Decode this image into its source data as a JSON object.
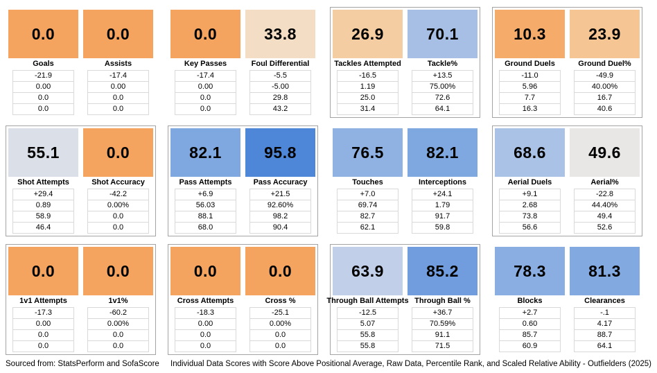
{
  "footer": {
    "source": "Sourced from: StatsPerform and SofaScore",
    "caption": "Individual Data Scores with Score Above Positional Average, Raw Data, Percentile Rank, and Scaled Relative Ability - Outfielders (2025)"
  },
  "rows": [
    {
      "groups": [
        {
          "bordered": false,
          "cards": [
            {
              "label": "Goals",
              "score": "0.0",
              "color": "#F5A45F",
              "values": [
                "-21.9",
                "0.00",
                "0.0",
                "0.0"
              ]
            },
            {
              "label": "Assists",
              "score": "0.0",
              "color": "#F5A45F",
              "values": [
                "-17.4",
                "0.00",
                "0.0",
                "0.0"
              ]
            }
          ]
        },
        {
          "bordered": false,
          "cards": [
            {
              "label": "Key Passes",
              "score": "0.0",
              "color": "#F5A45F",
              "values": [
                "-17.4",
                "0.00",
                "0.0",
                "0.0"
              ]
            },
            {
              "label": "Foul Differential",
              "score": "33.8",
              "color": "#F3DDC5",
              "values": [
                "-5.5",
                "-5.00",
                "29.8",
                "43.2"
              ]
            }
          ]
        },
        {
          "bordered": true,
          "cards": [
            {
              "label": "Tackles Attempted",
              "score": "26.9",
              "color": "#F4CDA2",
              "values": [
                "-16.5",
                "1.19",
                "25.0",
                "31.4"
              ]
            },
            {
              "label": "Tackle%",
              "score": "70.1",
              "color": "#A7BFE5",
              "values": [
                "+13.5",
                "75.00%",
                "72.6",
                "64.1"
              ]
            }
          ]
        },
        {
          "bordered": true,
          "cards": [
            {
              "label": "Ground Duels",
              "score": "10.3",
              "color": "#F5AC6B",
              "values": [
                "-11.0",
                "5.96",
                "7.7",
                "16.3"
              ]
            },
            {
              "label": "Ground Duel%",
              "score": "23.9",
              "color": "#F5C694",
              "values": [
                "-49.9",
                "40.00%",
                "16.7",
                "40.6"
              ]
            }
          ]
        }
      ]
    },
    {
      "groups": [
        {
          "bordered": true,
          "cards": [
            {
              "label": "Shot Attempts",
              "score": "55.1",
              "color": "#DADFE8",
              "values": [
                "+29.4",
                "0.89",
                "58.9",
                "46.4"
              ]
            },
            {
              "label": "Shot Accuracy",
              "score": "0.0",
              "color": "#F5A45F",
              "values": [
                "-42.2",
                "0.00%",
                "0.0",
                "0.0"
              ]
            }
          ]
        },
        {
          "bordered": true,
          "cards": [
            {
              "label": "Pass Attempts",
              "score": "82.1",
              "color": "#80A8E0",
              "values": [
                "+6.9",
                "56.03",
                "88.1",
                "68.0"
              ]
            },
            {
              "label": "Pass Accuracy",
              "score": "95.8",
              "color": "#4E86D8",
              "values": [
                "+21.5",
                "92.60%",
                "98.2",
                "90.4"
              ]
            }
          ]
        },
        {
          "bordered": false,
          "cards": [
            {
              "label": "Touches",
              "score": "76.5",
              "color": "#90B2E3",
              "values": [
                "+7.0",
                "69.74",
                "82.7",
                "62.1"
              ]
            },
            {
              "label": "Interceptions",
              "score": "82.1",
              "color": "#80A8E0",
              "values": [
                "+24.1",
                "1.79",
                "91.7",
                "59.8"
              ]
            }
          ]
        },
        {
          "bordered": true,
          "cards": [
            {
              "label": "Aerial Duels",
              "score": "68.6",
              "color": "#ABC2E7",
              "values": [
                "+9.1",
                "2.68",
                "73.8",
                "56.6"
              ]
            },
            {
              "label": "Aerial%",
              "score": "49.6",
              "color": "#E8E7E5",
              "values": [
                "-22.8",
                "44.40%",
                "49.4",
                "52.6"
              ]
            }
          ]
        }
      ]
    },
    {
      "groups": [
        {
          "bordered": true,
          "cards": [
            {
              "label": "1v1 Attempts",
              "score": "0.0",
              "color": "#F5A45F",
              "values": [
                "-17.3",
                "0.00",
                "0.0",
                "0.0"
              ]
            },
            {
              "label": "1v1%",
              "score": "0.0",
              "color": "#F5A45F",
              "values": [
                "-60.2",
                "0.00%",
                "0.0",
                "0.0"
              ]
            }
          ]
        },
        {
          "bordered": true,
          "cards": [
            {
              "label": "Cross Attempts",
              "score": "0.0",
              "color": "#F5A45F",
              "values": [
                "-18.3",
                "0.00",
                "0.0",
                "0.0"
              ]
            },
            {
              "label": "Cross %",
              "score": "0.0",
              "color": "#F5A45F",
              "values": [
                "-25.1",
                "0.00%",
                "0.0",
                "0.0"
              ]
            }
          ]
        },
        {
          "bordered": true,
          "cards": [
            {
              "label": "Through Ball Attempts",
              "score": "63.9",
              "color": "#C1CFE9",
              "values": [
                "-12.5",
                "5.07",
                "55.8",
                "55.8"
              ]
            },
            {
              "label": "Through Ball %",
              "score": "85.2",
              "color": "#719DDE",
              "values": [
                "+36.7",
                "70.59%",
                "91.1",
                "71.5"
              ]
            }
          ]
        },
        {
          "bordered": false,
          "cards": [
            {
              "label": "Blocks",
              "score": "78.3",
              "color": "#8AAEE2",
              "values": [
                "+2.7",
                "0.60",
                "85.7",
                "60.9"
              ]
            },
            {
              "label": "Clearances",
              "score": "81.3",
              "color": "#83A9E1",
              "values": [
                "-.1",
                "4.17",
                "88.7",
                "64.1"
              ]
            }
          ]
        }
      ]
    }
  ],
  "chart_data": {
    "type": "table",
    "title": "Individual Data Scores with Score Above Positional Average, Raw Data, Percentile Rank, and Scaled Relative Ability - Outfielders (2025)",
    "source": "StatsPerform and SofaScore",
    "row_labels": [
      "Individual Data Score",
      "Score Above Positional Average",
      "Raw Data",
      "Percentile Rank",
      "Scaled Relative Ability"
    ],
    "color_scale": {
      "low_color": "#F5A45F",
      "mid_color": "#E8E7E5",
      "high_color": "#4E86D8",
      "low": 0,
      "high": 100
    },
    "metrics": [
      {
        "name": "Goals",
        "score": 0.0,
        "score_above_avg": "-21.9",
        "raw": "0.00",
        "percentile": 0.0,
        "scaled": 0.0
      },
      {
        "name": "Assists",
        "score": 0.0,
        "score_above_avg": "-17.4",
        "raw": "0.00",
        "percentile": 0.0,
        "scaled": 0.0
      },
      {
        "name": "Key Passes",
        "score": 0.0,
        "score_above_avg": "-17.4",
        "raw": "0.00",
        "percentile": 0.0,
        "scaled": 0.0
      },
      {
        "name": "Foul Differential",
        "score": 33.8,
        "score_above_avg": "-5.5",
        "raw": "-5.00",
        "percentile": 29.8,
        "scaled": 43.2
      },
      {
        "name": "Tackles Attempted",
        "score": 26.9,
        "score_above_avg": "-16.5",
        "raw": "1.19",
        "percentile": 25.0,
        "scaled": 31.4
      },
      {
        "name": "Tackle%",
        "score": 70.1,
        "score_above_avg": "+13.5",
        "raw": "75.00%",
        "percentile": 72.6,
        "scaled": 64.1
      },
      {
        "name": "Ground Duels",
        "score": 10.3,
        "score_above_avg": "-11.0",
        "raw": "5.96",
        "percentile": 7.7,
        "scaled": 16.3
      },
      {
        "name": "Ground Duel%",
        "score": 23.9,
        "score_above_avg": "-49.9",
        "raw": "40.00%",
        "percentile": 16.7,
        "scaled": 40.6
      },
      {
        "name": "Shot Attempts",
        "score": 55.1,
        "score_above_avg": "+29.4",
        "raw": "0.89",
        "percentile": 58.9,
        "scaled": 46.4
      },
      {
        "name": "Shot Accuracy",
        "score": 0.0,
        "score_above_avg": "-42.2",
        "raw": "0.00%",
        "percentile": 0.0,
        "scaled": 0.0
      },
      {
        "name": "Pass Attempts",
        "score": 82.1,
        "score_above_avg": "+6.9",
        "raw": "56.03",
        "percentile": 88.1,
        "scaled": 68.0
      },
      {
        "name": "Pass Accuracy",
        "score": 95.8,
        "score_above_avg": "+21.5",
        "raw": "92.60%",
        "percentile": 98.2,
        "scaled": 90.4
      },
      {
        "name": "Touches",
        "score": 76.5,
        "score_above_avg": "+7.0",
        "raw": "69.74",
        "percentile": 82.7,
        "scaled": 62.1
      },
      {
        "name": "Interceptions",
        "score": 82.1,
        "score_above_avg": "+24.1",
        "raw": "1.79",
        "percentile": 91.7,
        "scaled": 59.8
      },
      {
        "name": "Aerial Duels",
        "score": 68.6,
        "score_above_avg": "+9.1",
        "raw": "2.68",
        "percentile": 73.8,
        "scaled": 56.6
      },
      {
        "name": "Aerial%",
        "score": 49.6,
        "score_above_avg": "-22.8",
        "raw": "44.40%",
        "percentile": 49.4,
        "scaled": 52.6
      },
      {
        "name": "1v1 Attempts",
        "score": 0.0,
        "score_above_avg": "-17.3",
        "raw": "0.00",
        "percentile": 0.0,
        "scaled": 0.0
      },
      {
        "name": "1v1%",
        "score": 0.0,
        "score_above_avg": "-60.2",
        "raw": "0.00%",
        "percentile": 0.0,
        "scaled": 0.0
      },
      {
        "name": "Cross Attempts",
        "score": 0.0,
        "score_above_avg": "-18.3",
        "raw": "0.00",
        "percentile": 0.0,
        "scaled": 0.0
      },
      {
        "name": "Cross %",
        "score": 0.0,
        "score_above_avg": "-25.1",
        "raw": "0.00%",
        "percentile": 0.0,
        "scaled": 0.0
      },
      {
        "name": "Through Ball Attempts",
        "score": 63.9,
        "score_above_avg": "-12.5",
        "raw": "5.07",
        "percentile": 55.8,
        "scaled": 55.8
      },
      {
        "name": "Through Ball %",
        "score": 85.2,
        "score_above_avg": "+36.7",
        "raw": "70.59%",
        "percentile": 91.1,
        "scaled": 71.5
      },
      {
        "name": "Blocks",
        "score": 78.3,
        "score_above_avg": "+2.7",
        "raw": "0.60",
        "percentile": 85.7,
        "scaled": 60.9
      },
      {
        "name": "Clearances",
        "score": 81.3,
        "score_above_avg": "-.1",
        "raw": "4.17",
        "percentile": 88.7,
        "scaled": 64.1
      }
    ]
  }
}
